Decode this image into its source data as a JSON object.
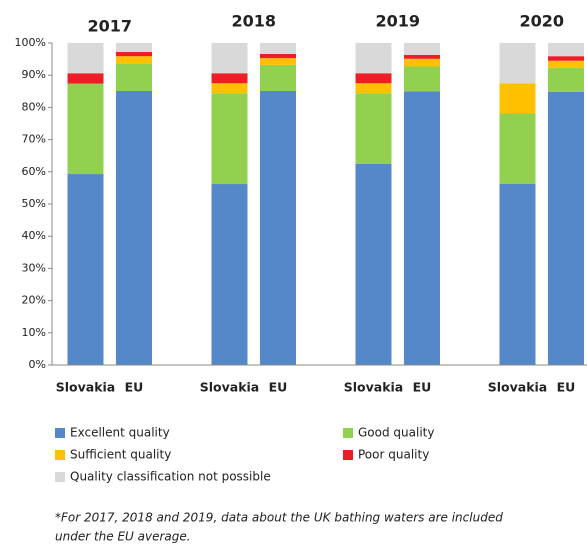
{
  "chart_data": {
    "type": "stacked_bar",
    "groups": [
      "2017",
      "2018",
      "2019",
      "2020"
    ],
    "categories": [
      "Slovakia",
      "EU",
      "Slovakia",
      "EU",
      "Slovakia",
      "EU",
      "Slovakia",
      "EU"
    ],
    "series": [
      {
        "name": "Excellent quality",
        "color": "#5588c8",
        "values": [
          59.3,
          85.1,
          56.2,
          85.1,
          62.5,
          85.0,
          56.3,
          84.8
        ]
      },
      {
        "name": "Good quality",
        "color": "#92d050",
        "values": [
          28.1,
          8.5,
          28.2,
          8.1,
          21.9,
          7.7,
          21.8,
          7.5
        ]
      },
      {
        "name": "Sufficient quality",
        "color": "#ffc000",
        "values": [
          0,
          2.3,
          3.1,
          2.1,
          3.1,
          2.4,
          9.4,
          2.2
        ]
      },
      {
        "name": "Poor quality",
        "color": "#ee1c25",
        "values": [
          3.2,
          1.3,
          3.1,
          1.3,
          3.1,
          1.2,
          0,
          1.4
        ]
      },
      {
        "name": "Quality classification not possible",
        "color": "#d9d9d9",
        "values": [
          9.4,
          2.8,
          9.4,
          3.4,
          9.4,
          3.7,
          12.5,
          4.1
        ]
      }
    ],
    "ylim": [
      0,
      100
    ],
    "yticks": [
      {
        "value": 0,
        "label": "0%"
      },
      {
        "value": 10,
        "label": "10%"
      },
      {
        "value": 20,
        "label": "20%"
      },
      {
        "value": 30,
        "label": "30%"
      },
      {
        "value": 40,
        "label": "40%"
      },
      {
        "value": 50,
        "label": "50%"
      },
      {
        "value": 60,
        "label": "60%"
      },
      {
        "value": 70,
        "label": "70%"
      },
      {
        "value": 80,
        "label": "80%"
      },
      {
        "value": 90,
        "label": "90%"
      },
      {
        "value": 100,
        "label": "100%"
      }
    ],
    "footnote": [
      "*For 2017, 2018 and 2019,  data about the UK bathing waters are included",
      "under the EU average."
    ]
  }
}
